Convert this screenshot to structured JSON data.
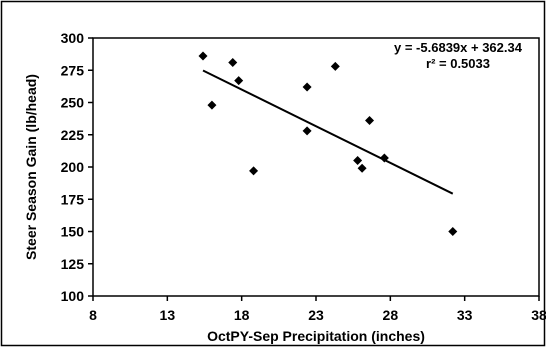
{
  "chart_data": {
    "type": "scatter",
    "xlabel": "OctPY-Sep Precipitation (inches)",
    "ylabel": "Steer Season Gain (lb/head)",
    "xlim": [
      8,
      38
    ],
    "ylim": [
      100,
      300
    ],
    "xticks": [
      8,
      13,
      18,
      23,
      28,
      33,
      38
    ],
    "yticks": [
      100,
      125,
      150,
      175,
      200,
      225,
      250,
      275,
      300
    ],
    "grid": "none",
    "legend": "none",
    "marker_color": "#000000",
    "points": [
      {
        "x": 15.4,
        "y": 286
      },
      {
        "x": 16.0,
        "y": 248
      },
      {
        "x": 17.4,
        "y": 281
      },
      {
        "x": 17.8,
        "y": 267
      },
      {
        "x": 18.8,
        "y": 197
      },
      {
        "x": 22.4,
        "y": 262
      },
      {
        "x": 22.4,
        "y": 228
      },
      {
        "x": 24.3,
        "y": 278
      },
      {
        "x": 25.8,
        "y": 205
      },
      {
        "x": 26.1,
        "y": 199
      },
      {
        "x": 26.6,
        "y": 236
      },
      {
        "x": 27.6,
        "y": 207
      },
      {
        "x": 32.2,
        "y": 150
      }
    ],
    "trendline": {
      "slope": -5.6839,
      "intercept": 362.34,
      "x_range": [
        15.4,
        32.2
      ],
      "equation": "y = -5.6839x + 362.34",
      "r2": "r² = 0.5033"
    }
  }
}
